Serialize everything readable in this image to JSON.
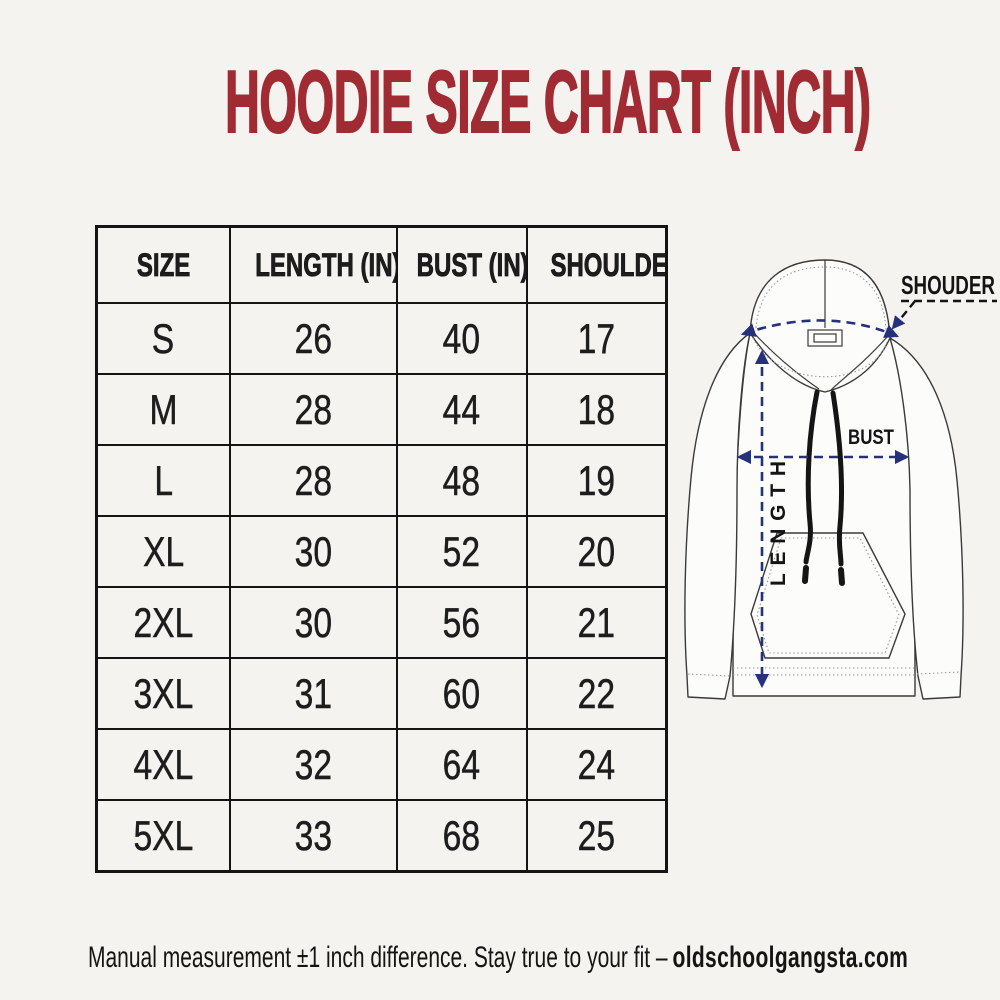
{
  "title": "HOODIE SIZE CHART (INCH)",
  "chart_data": {
    "type": "table",
    "title": "HOODIE SIZE CHART (INCH)",
    "columns": [
      "SIZE",
      "LENGTH (IN)",
      "BUST (IN)",
      "SHOULDER"
    ],
    "rows": [
      [
        "S",
        26,
        40,
        17
      ],
      [
        "M",
        28,
        44,
        18
      ],
      [
        "L",
        28,
        48,
        19
      ],
      [
        "XL",
        30,
        52,
        20
      ],
      [
        "2XL",
        30,
        56,
        21
      ],
      [
        "3XL",
        31,
        60,
        22
      ],
      [
        "4XL",
        32,
        64,
        24
      ],
      [
        "5XL",
        33,
        68,
        25
      ]
    ],
    "units": "inches",
    "note": "Manual measurement ±1 inch difference."
  },
  "diagram": {
    "shoulder_label": "SHOUDER",
    "bust_label": "BUST",
    "length_label": "LENGTH"
  },
  "footer": {
    "note": "Manual measurement ±1 inch difference. Stay true to your fit –",
    "brand": "oldschoolgangsta.com"
  },
  "colors": {
    "title_red": "#a12b33",
    "arrow_navy": "#26317c",
    "line_dark": "#3a3a3a"
  }
}
